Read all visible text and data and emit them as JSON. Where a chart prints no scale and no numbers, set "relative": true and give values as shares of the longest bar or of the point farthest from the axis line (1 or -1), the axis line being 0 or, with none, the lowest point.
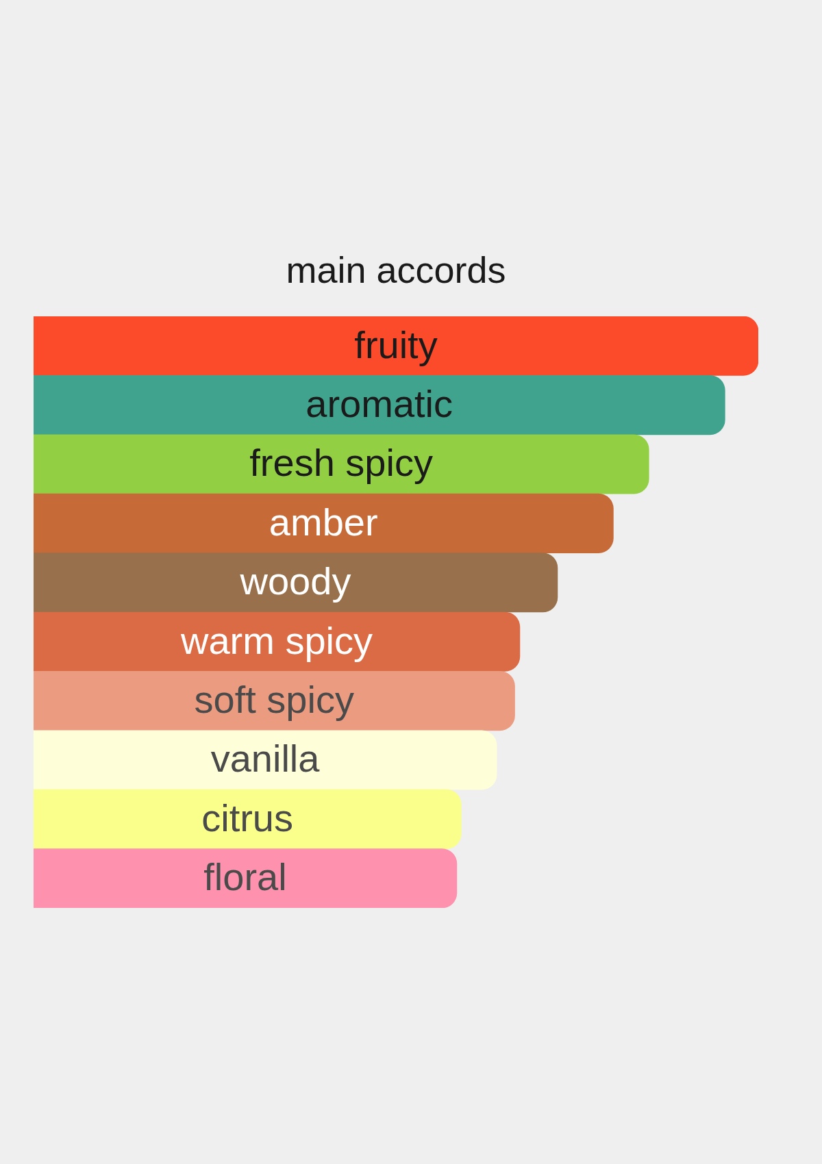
{
  "chart_data": {
    "type": "bar",
    "orientation": "horizontal",
    "relative": true,
    "title": "main accords",
    "categories": [
      "fruity",
      "aromatic",
      "fresh spicy",
      "amber",
      "woody",
      "warm spicy",
      "soft spicy",
      "vanilla",
      "citrus",
      "floral"
    ],
    "values": [
      1,
      0.954,
      0.849,
      0.8,
      0.723,
      0.671,
      0.664,
      0.639,
      0.59,
      0.584
    ],
    "colors": [
      "#fc4b2a",
      "#3fa38d",
      "#92cf43",
      "#c66a38",
      "#98704b",
      "#db6b45",
      "#ea9b80",
      "#fefed9",
      "#fafe8b",
      "#fe92ae"
    ]
  }
}
